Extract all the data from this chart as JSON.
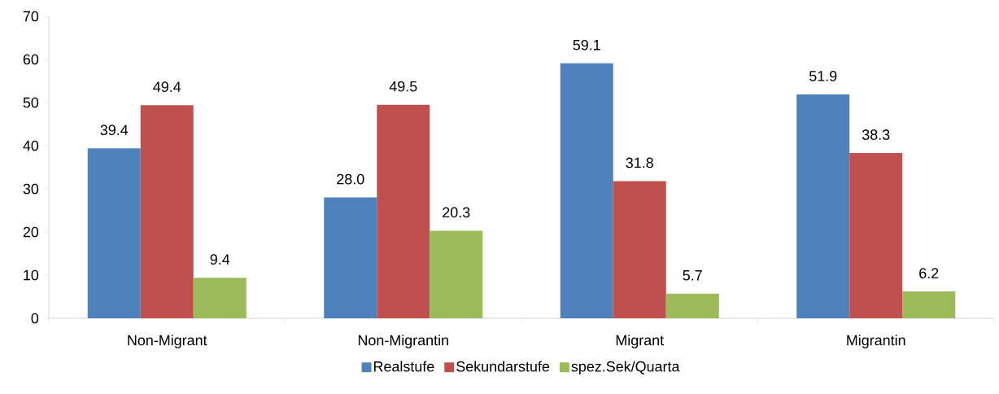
{
  "chart_data": {
    "type": "bar",
    "categories": [
      "Non-Migrant",
      "Non-Migrantin",
      "Migrant",
      "Migrantin"
    ],
    "series": [
      {
        "name": "Realstufe",
        "color": "#4f81bd",
        "values": [
          39.4,
          28.0,
          59.1,
          51.9
        ],
        "value_labels": [
          "39.4",
          "28.0",
          "59.1",
          "51.9"
        ]
      },
      {
        "name": "Sekundarstufe",
        "color": "#c0504d",
        "values": [
          49.4,
          49.5,
          31.8,
          38.3
        ],
        "value_labels": [
          "49.4",
          "49.5",
          "31.8",
          "38.3"
        ]
      },
      {
        "name": "spez.Sek/Quarta",
        "color": "#9bbb59",
        "values": [
          9.4,
          20.3,
          5.7,
          6.2
        ],
        "value_labels": [
          "9.4",
          "20.3",
          "5.7",
          "6.2"
        ]
      }
    ],
    "ylim": [
      0,
      70
    ],
    "yticks": [
      0,
      10,
      20,
      30,
      40,
      50,
      60,
      70
    ],
    "grid": false,
    "legend": "bottom"
  }
}
